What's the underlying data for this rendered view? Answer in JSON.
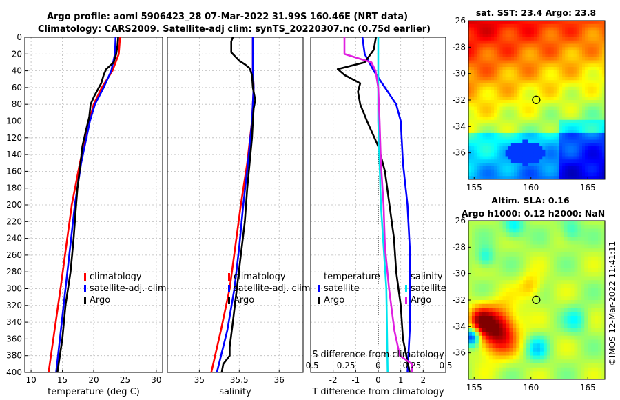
{
  "header": {
    "line1": "Argo profile: aoml 5906423_28 07-Mar-2022 31.99S 160.46E (NRT data)",
    "line2": "Climatology: CARS2009. Satellite-adj clim: synTS_20220307.nc (0.75d earlier)"
  },
  "watermark": "©IMOS 12-Mar-2022 11:41:11",
  "colors": {
    "climatology": "#ff0000",
    "satellite": "#0000ff",
    "argo": "#000000",
    "salinity_satellite": "#00e5ee",
    "salinity_argo": "#e020e0",
    "grid": "#bbbbbb"
  },
  "chart_data": [
    {
      "id": "temperature",
      "type": "line",
      "xlabel": "temperature (deg C)",
      "ylabel": "depth",
      "xlim": [
        9,
        31
      ],
      "ylim": [
        0,
        400
      ],
      "xticks": [
        10,
        15,
        20,
        25,
        30
      ],
      "yticks": [
        0,
        20,
        40,
        60,
        80,
        100,
        120,
        140,
        160,
        180,
        200,
        220,
        240,
        260,
        280,
        300,
        320,
        340,
        360,
        380,
        400
      ],
      "legend": [
        "climatology",
        "satellite-adj. clim",
        "Argo"
      ],
      "series": [
        {
          "name": "climatology",
          "color": "#ff0000",
          "depth": [
            0,
            20,
            40,
            60,
            80,
            100,
            150,
            200,
            300,
            400
          ],
          "values": [
            24.2,
            24.0,
            23.0,
            21.3,
            20.0,
            19.3,
            17.8,
            16.5,
            14.7,
            12.8
          ]
        },
        {
          "name": "satellite-adj. clim",
          "color": "#0000ff",
          "depth": [
            0,
            20,
            40,
            60,
            80,
            100,
            150,
            200,
            300,
            400
          ],
          "values": [
            23.5,
            23.4,
            22.8,
            21.6,
            20.2,
            19.4,
            18.0,
            17.0,
            15.5,
            14.0
          ]
        },
        {
          "name": "Argo",
          "color": "#000000",
          "depth": [
            0,
            10,
            20,
            30,
            38,
            45,
            55,
            70,
            80,
            95,
            110,
            130,
            150,
            180,
            200,
            240,
            280,
            320,
            360,
            390,
            400
          ],
          "values": [
            23.9,
            23.8,
            23.6,
            23.2,
            22.0,
            21.6,
            21.2,
            20.1,
            19.5,
            19.3,
            18.8,
            18.2,
            17.9,
            17.4,
            17.2,
            16.8,
            16.3,
            15.5,
            15.0,
            14.4,
            14.2
          ]
        }
      ]
    },
    {
      "id": "salinity",
      "type": "line",
      "xlabel": "salinity",
      "xlim": [
        34.6,
        36.3
      ],
      "ylim": [
        0,
        400
      ],
      "xticks": [
        35,
        35.5,
        36
      ],
      "legend": [
        "climatology",
        "satellite-adj. clim",
        "Argo"
      ],
      "series": [
        {
          "name": "climatology",
          "color": "#ff0000",
          "depth": [
            0,
            40,
            60,
            80,
            100,
            150,
            200,
            250,
            300,
            350,
            400
          ],
          "values": [
            35.67,
            35.67,
            35.68,
            35.67,
            35.66,
            35.6,
            35.52,
            35.45,
            35.38,
            35.27,
            35.15
          ]
        },
        {
          "name": "satellite-adj. clim",
          "color": "#0000ff",
          "depth": [
            0,
            40,
            60,
            80,
            100,
            150,
            200,
            250,
            300,
            350,
            400
          ],
          "values": [
            35.67,
            35.67,
            35.68,
            35.67,
            35.66,
            35.61,
            35.55,
            35.5,
            35.44,
            35.35,
            35.22
          ]
        },
        {
          "name": "Argo",
          "color": "#000000",
          "depth": [
            0,
            5,
            18,
            20,
            28,
            33,
            37,
            45,
            60,
            75,
            85,
            100,
            120,
            150,
            180,
            220,
            260,
            300,
            340,
            370,
            380,
            390,
            400
          ],
          "values": [
            35.42,
            35.4,
            35.4,
            35.42,
            35.5,
            35.58,
            35.63,
            35.66,
            35.67,
            35.7,
            35.68,
            35.67,
            35.66,
            35.63,
            35.6,
            35.57,
            35.52,
            35.47,
            35.42,
            35.38,
            35.38,
            35.3,
            35.28
          ]
        }
      ]
    },
    {
      "id": "differences",
      "type": "line",
      "xlabel": "T difference from climatology",
      "xlabel2": "S difference from climatology",
      "xlim": [
        -3,
        3
      ],
      "ylim": [
        0,
        400
      ],
      "xticks": [
        -2,
        -1,
        0,
        1,
        2
      ],
      "s_ticks": [
        "-0.5",
        "-0.25",
        "0",
        "0.25",
        "0.5"
      ],
      "legend_temperature": [
        "temperature",
        "satellite",
        "Argo"
      ],
      "legend_salinity": [
        "salinity",
        "satellite",
        "Argo"
      ],
      "series": [
        {
          "name": "T satellite",
          "color": "#0000ff",
          "depth": [
            0,
            20,
            40,
            60,
            80,
            100,
            150,
            200,
            250,
            300,
            350,
            400
          ],
          "values": [
            -0.7,
            -0.6,
            -0.2,
            0.3,
            0.8,
            1.0,
            1.1,
            1.3,
            1.4,
            1.4,
            1.4,
            1.3
          ]
        },
        {
          "name": "T Argo",
          "color": "#000000",
          "depth": [
            0,
            15,
            30,
            38,
            45,
            55,
            65,
            80,
            100,
            130,
            160,
            200,
            240,
            280,
            320,
            360,
            400
          ],
          "values": [
            -0.1,
            -0.2,
            -0.6,
            -1.8,
            -1.5,
            -0.8,
            -0.9,
            -0.8,
            -0.5,
            0.0,
            0.3,
            0.5,
            0.7,
            0.8,
            1.0,
            1.1,
            1.4
          ]
        },
        {
          "name": "S satellite",
          "color": "#00e5ee",
          "depth": [
            0,
            50,
            100,
            200,
            300,
            400
          ],
          "values": [
            0.0,
            0.0,
            0.0,
            0.02,
            0.06,
            0.07
          ]
        },
        {
          "name": "S Argo",
          "color": "#e020e0",
          "depth": [
            0,
            20,
            30,
            40,
            60,
            100,
            150,
            200,
            250,
            300,
            350,
            380,
            390,
            400
          ],
          "values": [
            -0.25,
            -0.25,
            -0.05,
            -0.02,
            0.0,
            0.01,
            0.02,
            0.04,
            0.05,
            0.08,
            0.12,
            0.16,
            0.25,
            0.25
          ]
        }
      ]
    },
    {
      "id": "sst-map",
      "type": "heatmap",
      "title": "sat. SST: 23.4 Argo: 23.8",
      "xlim": [
        154.5,
        166.5
      ],
      "ylim": [
        -38,
        -26
      ],
      "xticks": [
        155,
        160,
        165
      ],
      "yticks": [
        -26,
        -28,
        -30,
        -32,
        -34,
        -36
      ],
      "marker": {
        "lon": 160.46,
        "lat": -31.99
      }
    },
    {
      "id": "sla-map",
      "type": "heatmap",
      "title": "Altim. SLA: 0.16",
      "subtitle": "Argo h1000: 0.12 h2000: NaN",
      "xlim": [
        154.5,
        166.5
      ],
      "ylim": [
        -38,
        -26
      ],
      "xticks": [
        155,
        160,
        165
      ],
      "yticks": [
        -26,
        -28,
        -30,
        -32,
        -34,
        -36
      ],
      "marker": {
        "lon": 160.46,
        "lat": -31.99
      }
    }
  ]
}
